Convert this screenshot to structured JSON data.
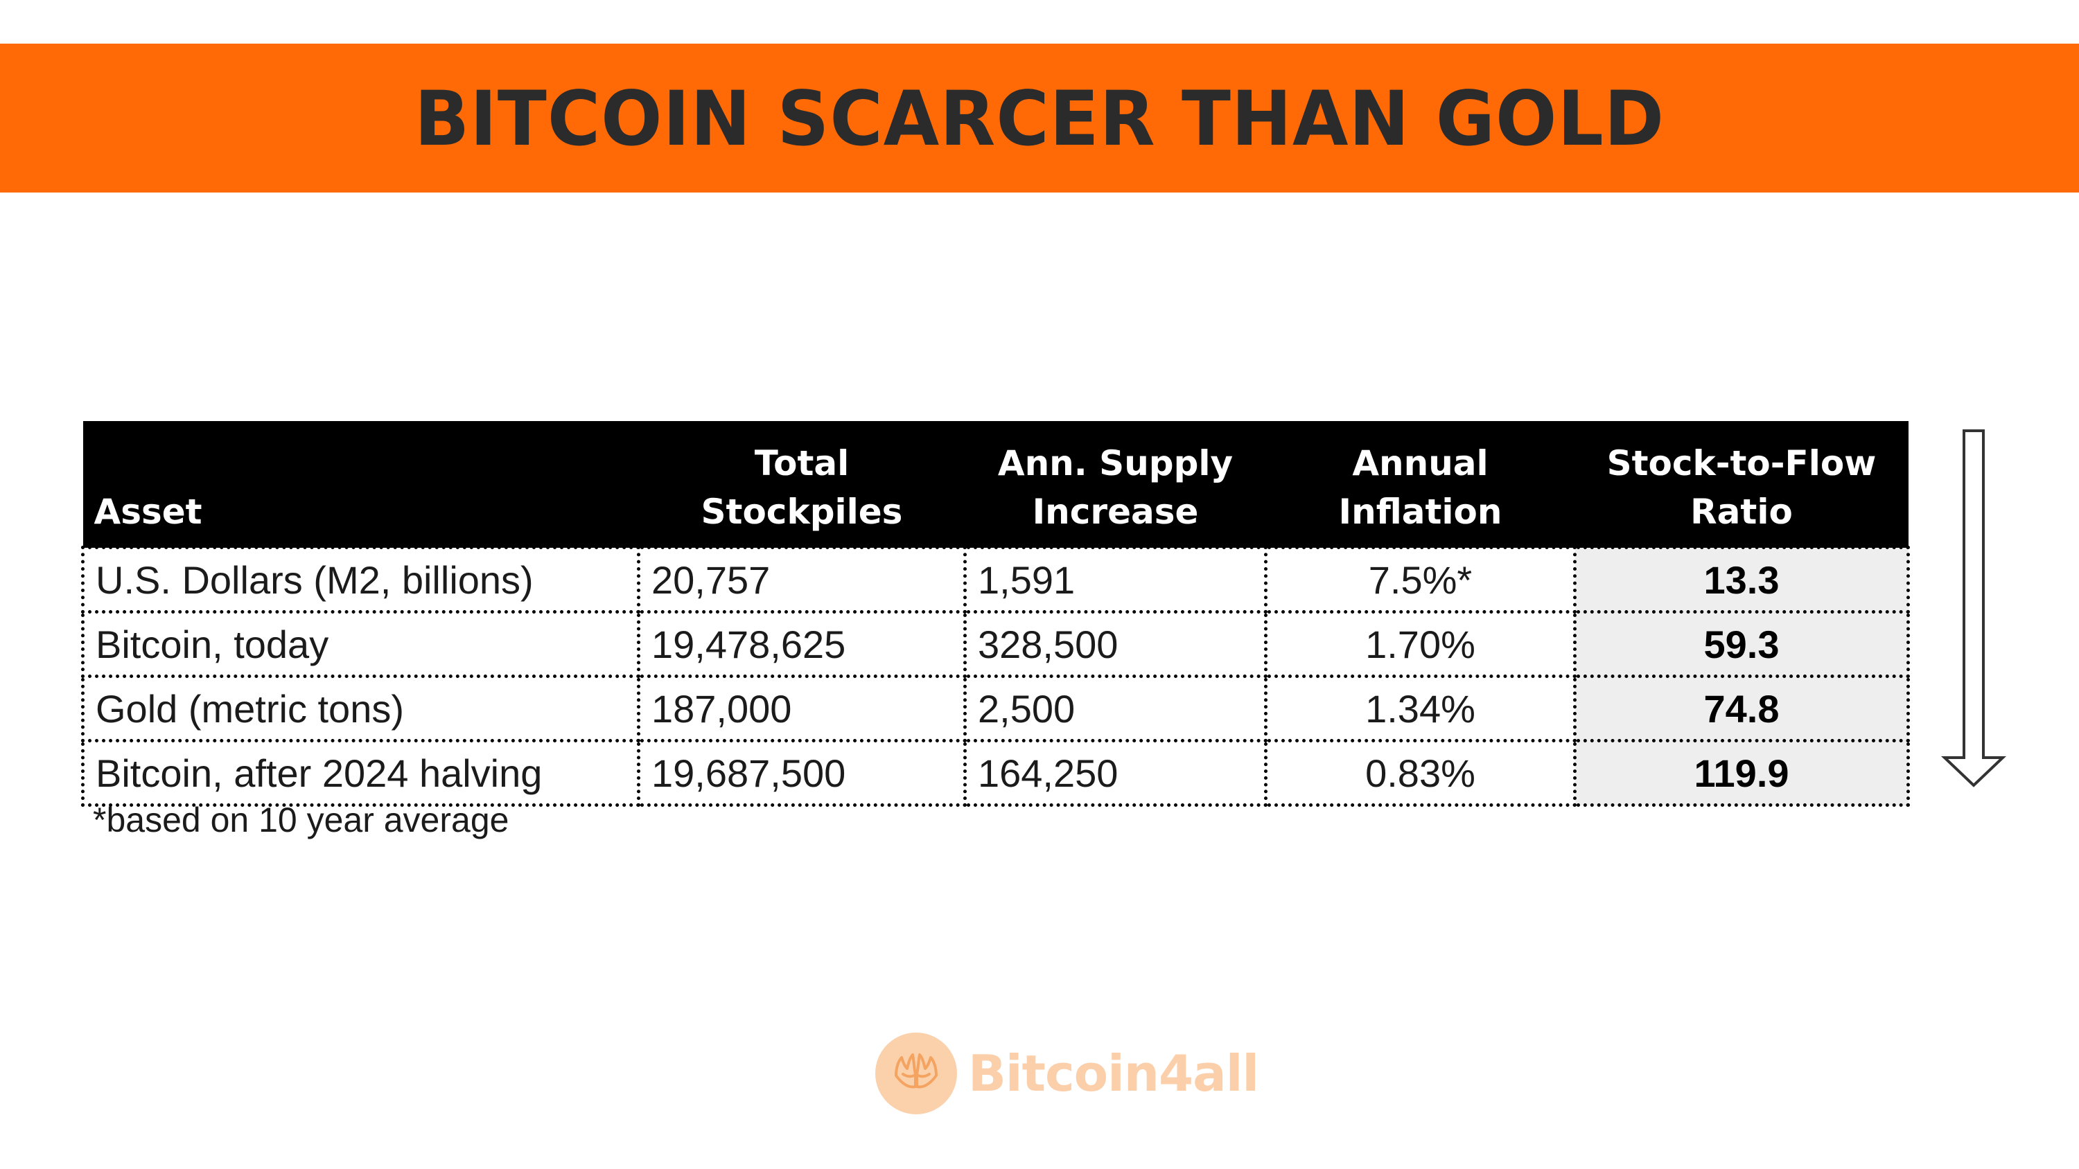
{
  "title": "BITCOIN SCARCER THAN GOLD",
  "table": {
    "headers": [
      [
        "Asset"
      ],
      [
        "Total",
        "Stockpiles"
      ],
      [
        "Ann. Supply",
        "Increase"
      ],
      [
        "Annual",
        "Inflation"
      ],
      [
        "Stock-to-Flow",
        "Ratio"
      ]
    ],
    "rows": [
      {
        "asset": "U.S. Dollars (M2, billions)",
        "stockpiles": "20,757",
        "supply_increase": "1,591",
        "inflation": "7.5%*",
        "ratio": "13.3"
      },
      {
        "asset": "Bitcoin, today",
        "stockpiles": "19,478,625",
        "supply_increase": "328,500",
        "inflation": "1.70%",
        "ratio": "59.3"
      },
      {
        "asset": "Gold (metric tons)",
        "stockpiles": "187,000",
        "supply_increase": "2,500",
        "inflation": "1.34%",
        "ratio": "74.8"
      },
      {
        "asset": "Bitcoin, after 2024 halving",
        "stockpiles": "19,687,500",
        "supply_increase": "164,250",
        "inflation": "0.83%",
        "ratio": "119.9"
      }
    ]
  },
  "footnote": "*based on 10 year average",
  "logo": {
    "name": "Bitcoin4all",
    "icon": "hands-icon"
  },
  "colors": {
    "banner": "#ff6a06",
    "title": "#2b2b2b",
    "header_bg": "#000000",
    "ratio_bg": "#eeeeee",
    "logo": "#fbcfa9"
  }
}
